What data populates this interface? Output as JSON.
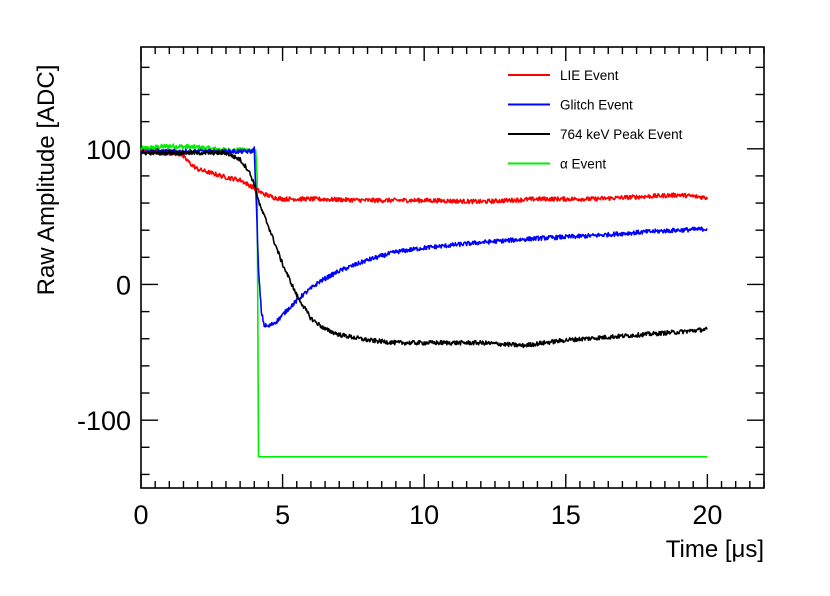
{
  "chart_data": {
    "type": "line",
    "title": "",
    "xlabel": "Time [μs]",
    "ylabel": "Raw Amplitude [ADC]",
    "xlim": [
      0,
      22
    ],
    "ylim": [
      -150,
      175
    ],
    "x_ticks": [
      0,
      5,
      10,
      15,
      20
    ],
    "x_tick_labels": [
      "0",
      "5",
      "10",
      "15",
      "20"
    ],
    "y_ticks": [
      100,
      0,
      -100
    ],
    "y_tick_labels": [
      "100",
      "0",
      "-100"
    ],
    "legend_position": "top-right",
    "series": [
      {
        "name": "LIE Event",
        "color": "#ff0000",
        "x": [
          0,
          1,
          1.4,
          1.6,
          1.8,
          2.0,
          2.5,
          3.0,
          3.5,
          4.0,
          4.3,
          4.7,
          5.0,
          6,
          8,
          10,
          12,
          14,
          16,
          18,
          19,
          20
        ],
        "y": [
          98,
          97,
          96,
          92,
          88,
          85,
          82,
          79,
          77,
          71,
          67,
          64,
          63,
          63,
          62,
          62,
          61,
          63,
          63,
          65,
          66,
          64
        ]
      },
      {
        "name": "Glitch Event",
        "color": "#0000ff",
        "x": [
          0,
          2,
          3.9,
          4.0,
          4.08,
          4.15,
          4.25,
          4.35,
          4.5,
          4.8,
          5.2,
          5.7,
          6.3,
          7,
          8,
          9,
          10,
          12,
          14,
          16,
          18,
          20
        ],
        "y": [
          98,
          98,
          98,
          100,
          55,
          10,
          -20,
          -30,
          -31,
          -27,
          -18,
          -8,
          2,
          10,
          18,
          24,
          27,
          31,
          34,
          36,
          39,
          41
        ]
      },
      {
        "name": "764 keV Peak Event",
        "color": "#000000",
        "x": [
          0,
          2,
          3.0,
          3.5,
          3.8,
          4.0,
          4.2,
          4.5,
          5.0,
          5.5,
          6.0,
          6.5,
          7,
          8,
          9,
          10,
          12,
          13.5,
          15,
          17,
          19,
          20
        ],
        "y": [
          97,
          97,
          97,
          92,
          84,
          74,
          58,
          43,
          15,
          -8,
          -25,
          -33,
          -37,
          -41,
          -43,
          -43,
          -43,
          -45,
          -41,
          -38,
          -35,
          -33
        ]
      },
      {
        "name": "α Event",
        "color": "#00ee00",
        "x": [
          0,
          1,
          2,
          3,
          3.9,
          4.05,
          4.1,
          4.15,
          10,
          15,
          20
        ],
        "y": [
          100,
          102,
          101,
          99,
          99,
          99,
          80,
          -127,
          -127,
          -127,
          -127
        ]
      }
    ]
  }
}
